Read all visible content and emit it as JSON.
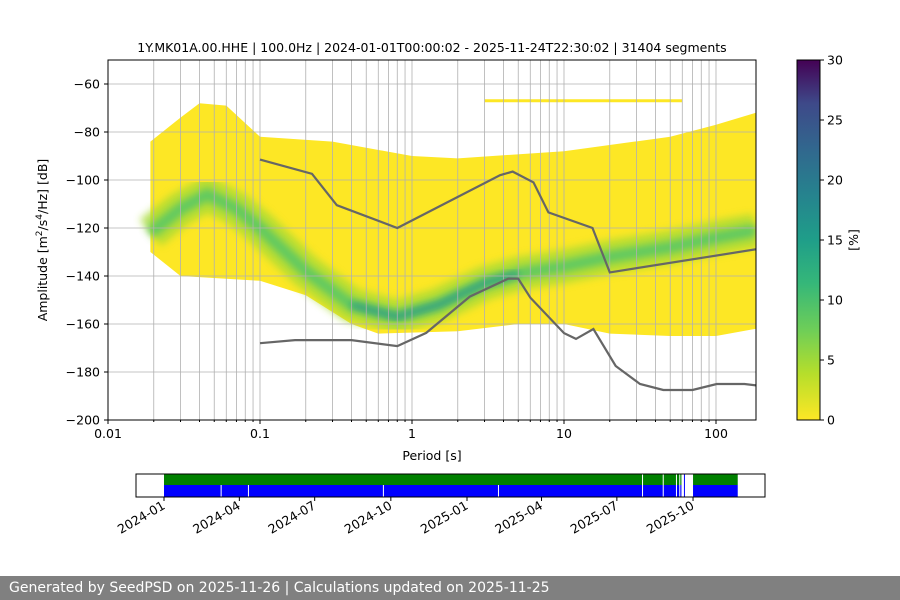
{
  "chart_data": {
    "type": "heatmap",
    "title": "1Y.MK01A.00.HHE | 100.0Hz | 2024-01-01T00:00:02 - 2025-11-24T22:30:02 | 31404 segments",
    "xlabel": "Period [s]",
    "ylabel_parts": [
      "Amplitude [m",
      "2",
      "/s",
      "4",
      "/Hz] [dB]"
    ],
    "xscale": "log",
    "xlim": [
      0.01,
      183
    ],
    "ylim": [
      -200,
      -50
    ],
    "xticks": [
      {
        "v": 0.01,
        "label": "0.01"
      },
      {
        "v": 0.1,
        "label": "0.1"
      },
      {
        "v": 1,
        "label": "1"
      },
      {
        "v": 10,
        "label": "10"
      },
      {
        "v": 100,
        "label": "100"
      }
    ],
    "yticks": [
      {
        "v": -60,
        "label": "−60"
      },
      {
        "v": -80,
        "label": "−80"
      },
      {
        "v": -100,
        "label": "−100"
      },
      {
        "v": -120,
        "label": "−120"
      },
      {
        "v": -140,
        "label": "−140"
      },
      {
        "v": -160,
        "label": "−160"
      },
      {
        "v": -180,
        "label": "−180"
      },
      {
        "v": -200,
        "label": "−200"
      }
    ],
    "grid": true,
    "envelope_upper": [
      [
        0.019,
        -84
      ],
      [
        0.03,
        -74
      ],
      [
        0.04,
        -68
      ],
      [
        0.06,
        -69
      ],
      [
        0.1,
        -82
      ],
      [
        0.3,
        -84
      ],
      [
        1,
        -90
      ],
      [
        2,
        -91
      ],
      [
        10,
        -88
      ],
      [
        50,
        -82
      ],
      [
        100,
        -77
      ],
      [
        183,
        -72
      ]
    ],
    "envelope_lower": [
      [
        0.019,
        -130
      ],
      [
        0.03,
        -140
      ],
      [
        0.1,
        -142
      ],
      [
        0.2,
        -148
      ],
      [
        0.4,
        -160
      ],
      [
        0.6,
        -164
      ],
      [
        2,
        -163
      ],
      [
        5,
        -160
      ],
      [
        10,
        -160
      ],
      [
        20,
        -164
      ],
      [
        50,
        -165
      ],
      [
        100,
        -165
      ],
      [
        183,
        -162
      ]
    ],
    "mode_curve": [
      [
        0.019,
        -122
      ],
      [
        0.03,
        -112
      ],
      [
        0.045,
        -106
      ],
      [
        0.07,
        -112
      ],
      [
        0.1,
        -120
      ],
      [
        0.2,
        -138
      ],
      [
        0.4,
        -152
      ],
      [
        0.8,
        -157
      ],
      [
        1.5,
        -152
      ],
      [
        3,
        -143
      ],
      [
        5,
        -139
      ],
      [
        10,
        -136
      ],
      [
        20,
        -132
      ],
      [
        50,
        -128
      ],
      [
        100,
        -124
      ],
      [
        183,
        -121
      ]
    ],
    "nhnm": [
      [
        0.1,
        -91.5
      ],
      [
        0.22,
        -97.4
      ],
      [
        0.32,
        -110.5
      ],
      [
        0.8,
        -120
      ],
      [
        3.8,
        -98
      ],
      [
        4.6,
        -96.5
      ],
      [
        6.3,
        -101
      ],
      [
        7.9,
        -113.5
      ],
      [
        15.4,
        -120
      ],
      [
        20,
        -138.5
      ],
      [
        354.8,
        -126
      ]
    ],
    "nlnm": [
      [
        0.1,
        -168
      ],
      [
        0.17,
        -166.7
      ],
      [
        0.4,
        -166.7
      ],
      [
        0.8,
        -169.2
      ],
      [
        1.24,
        -163.7
      ],
      [
        2.4,
        -148.6
      ],
      [
        4.3,
        -141.1
      ],
      [
        5,
        -141.1
      ],
      [
        6,
        -149
      ],
      [
        10,
        -163.8
      ],
      [
        12,
        -166.2
      ],
      [
        15.6,
        -162.1
      ],
      [
        21.9,
        -177.5
      ],
      [
        31.6,
        -185
      ],
      [
        45,
        -187.5
      ],
      [
        70,
        -187.5
      ],
      [
        101,
        -185
      ],
      [
        154,
        -185
      ],
      [
        328,
        -187.5
      ]
    ],
    "colorbar": {
      "label": "[%]",
      "range": [
        0,
        30
      ],
      "ticks": [
        "0",
        "5",
        "10",
        "15",
        "20",
        "25",
        "30"
      ],
      "colormap": "viridis_r"
    },
    "timeline": {
      "start": "2023-12-01",
      "end": "2025-12-24",
      "data_start": "2024-01-01",
      "data_end": "2025-11-24",
      "gaps_blue": [
        "2024-03-10",
        "2024-04-12",
        "2024-09-22",
        "2025-02-08",
        "2025-08-01",
        "2025-08-26",
        "2025-09-11",
        "2025-09-15"
      ],
      "gap_ranges": [
        [
          "2025-09-17",
          "2025-10-01"
        ]
      ],
      "ticks": [
        "2024-01",
        "2024-04",
        "2024-07",
        "2024-10",
        "2025-01",
        "2025-04",
        "2025-07",
        "2025-10"
      ],
      "colors": {
        "top": "#008000",
        "bottom": "#0000ff"
      }
    }
  },
  "footer": "Generated by SeedPSD on 2025-11-26 | Calculations updated on 2025-11-25"
}
